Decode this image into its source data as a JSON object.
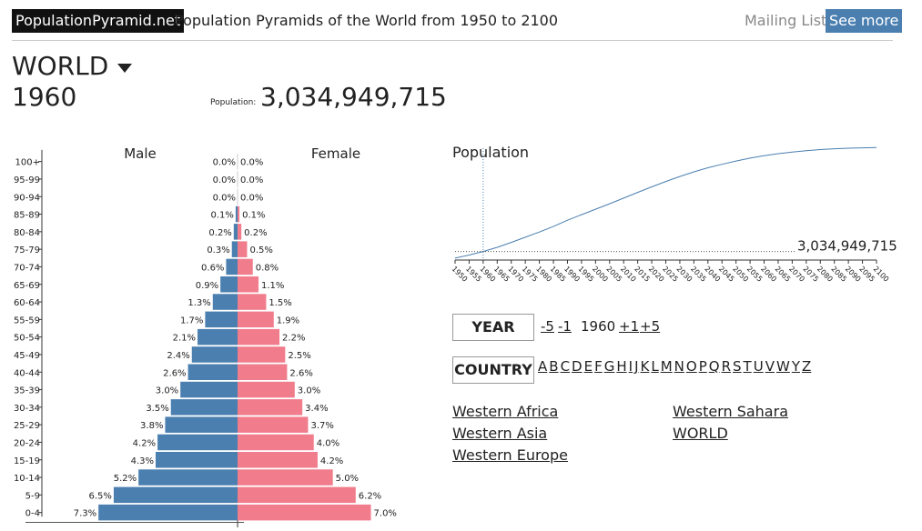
{
  "header": {
    "brand": "PopulationPyramid.net",
    "tagline": "Population Pyramids of the World from 1950 to 2100",
    "mailing": "Mailing List -",
    "see_more": "See more"
  },
  "summary": {
    "country": "WORLD",
    "year": "1960",
    "population_label": "Population:",
    "population_value": "3,034,949,715"
  },
  "colors": {
    "male": "#4a7fb0",
    "female": "#f07c8c",
    "brand_bg": "#111111",
    "accent": "#4a7fb0"
  },
  "chart_data": [
    {
      "type": "bar",
      "orientation": "horizontal",
      "categories": [
        "100+",
        "95-99",
        "90-94",
        "85-89",
        "80-84",
        "75-79",
        "70-74",
        "65-69",
        "60-64",
        "55-59",
        "50-54",
        "45-49",
        "40-44",
        "35-39",
        "30-34",
        "25-29",
        "20-24",
        "15-19",
        "10-14",
        "5-9",
        "0-4"
      ],
      "series": [
        {
          "name": "Male",
          "values": [
            0.0,
            0.0,
            0.0,
            0.1,
            0.2,
            0.3,
            0.6,
            0.9,
            1.3,
            1.7,
            2.1,
            2.4,
            2.6,
            3.0,
            3.5,
            3.8,
            4.2,
            4.3,
            5.2,
            6.5,
            7.3
          ],
          "labels": [
            "0.0%",
            "0.0%",
            "0.0%",
            "0.1%",
            "0.2%",
            "0.3%",
            "0.6%",
            "0.9%",
            "1.3%",
            "1.7%",
            "2.1%",
            "2.4%",
            "2.6%",
            "3.0%",
            "3.5%",
            "3.8%",
            "4.2%",
            "4.3%",
            "5.2%",
            "6.5%",
            "7.3%"
          ]
        },
        {
          "name": "Female",
          "values": [
            0.0,
            0.0,
            0.0,
            0.1,
            0.2,
            0.5,
            0.8,
            1.1,
            1.5,
            1.9,
            2.2,
            2.5,
            2.6,
            3.0,
            3.4,
            3.7,
            4.0,
            4.2,
            5.0,
            6.2,
            7.0
          ],
          "labels": [
            "0.0%",
            "0.0%",
            "0.0%",
            "0.1%",
            "0.2%",
            "0.5%",
            "0.8%",
            "1.1%",
            "1.5%",
            "1.9%",
            "2.2%",
            "2.5%",
            "2.6%",
            "3.0%",
            "3.4%",
            "3.7%",
            "4.0%",
            "4.2%",
            "5.0%",
            "6.2%",
            "7.0%"
          ]
        }
      ],
      "xlim": [
        0,
        7.5
      ]
    },
    {
      "type": "line",
      "title": "Population",
      "x": [
        1950,
        1955,
        1960,
        1965,
        1970,
        1975,
        1980,
        1985,
        1990,
        1995,
        2000,
        2005,
        2010,
        2015,
        2020,
        2025,
        2030,
        2035,
        2040,
        2045,
        2050,
        2055,
        2060,
        2065,
        2070,
        2075,
        2080,
        2085,
        2090,
        2095,
        2100
      ],
      "x_tick_labels": [
        "1950",
        "1955",
        "1960",
        "1965",
        "1970",
        "1975",
        "1980",
        "1985",
        "1990",
        "1995",
        "2000",
        "2005",
        "2010",
        "2015",
        "2020",
        "2025",
        "2030",
        "2035",
        "2040",
        "2045",
        "2050",
        "2055",
        "2060",
        "2065",
        "2070",
        "2075",
        "2080",
        "2085",
        "2090",
        "2095",
        "2100"
      ],
      "series": [
        {
          "values": [
            2.54,
            2.77,
            3.03,
            3.34,
            3.7,
            4.08,
            4.46,
            4.87,
            5.33,
            5.74,
            6.14,
            6.54,
            6.96,
            7.38,
            7.79,
            8.18,
            8.55,
            8.89,
            9.19,
            9.45,
            9.69,
            9.9,
            10.08,
            10.23,
            10.35,
            10.45,
            10.53,
            10.59,
            10.63,
            10.66,
            10.68
          ]
        }
      ],
      "selected_x": 1960,
      "selected_label": "3,034,949,715",
      "ylim": [
        2.4,
        10.9
      ]
    }
  ],
  "controls": {
    "year_label": "YEAR",
    "minus5": "-5",
    "minus1": "-1",
    "current": "1960",
    "plus1": "+1",
    "plus5": "+5",
    "country_label": "COUNTRY",
    "letters": [
      "A",
      "B",
      "C",
      "D",
      "E",
      "F",
      "G",
      "H",
      "I",
      "J",
      "K",
      "L",
      "M",
      "N",
      "O",
      "P",
      "Q",
      "R",
      "S",
      "T",
      "U",
      "V",
      "W",
      "Y",
      "Z"
    ]
  },
  "country_links": [
    "Western Africa",
    "Western Asia",
    "Western Europe",
    "Western Sahara",
    "WORLD"
  ]
}
